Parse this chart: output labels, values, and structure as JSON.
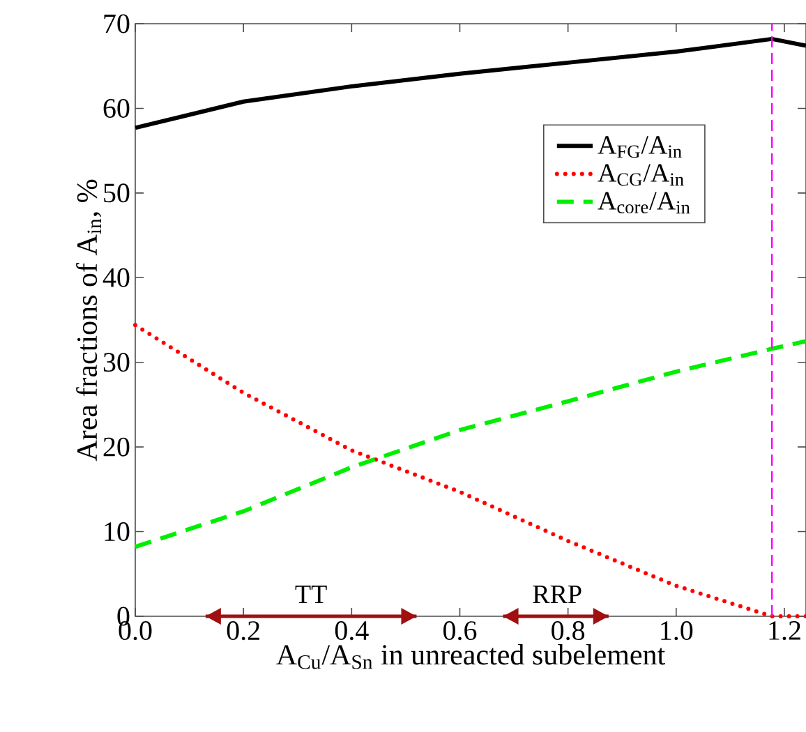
{
  "chart_data": {
    "type": "line",
    "xlabel": "A$_{Cu}$/A$_{Sn}$ in unreacted subelement",
    "ylabel": "Area fractions of A$_{in}$, %",
    "x": [
      0,
      0.2,
      0.4,
      0.6,
      0.8,
      1.0,
      1.177,
      1.24
    ],
    "series": [
      {
        "name": "A$_{FG}$/A$_{in}$",
        "color": "#000000",
        "line_style": "solid",
        "values": [
          57.7,
          60.8,
          62.6,
          64.1,
          65.4,
          66.7,
          68.2,
          67.4
        ]
      },
      {
        "name": "A$_{CG}$/A$_{in}$",
        "color": "#ff0000",
        "line_style": "dotted",
        "values": [
          34.4,
          26.4,
          19.6,
          14.7,
          8.9,
          3.6,
          0,
          0
        ]
      },
      {
        "name": "A$_{core}$/A$_{in}$",
        "color": "#00ee00",
        "line_style": "dashed",
        "values": [
          8.2,
          12.4,
          17.6,
          22.0,
          25.4,
          28.9,
          31.6,
          32.5
        ]
      },
      {
        "color": "#a01010",
        "line_style": "solid",
        "x": [
          0.13,
          0.52
        ],
        "values": [
          0,
          0
        ]
      },
      {
        "color": "#a01010",
        "line_style": "solid",
        "x": [
          0.68,
          0.875
        ],
        "values": [
          0,
          0
        ]
      }
    ],
    "annotations": [
      {
        "text": "TT",
        "x": 0.325,
        "y": 0
      },
      {
        "text": "RRP",
        "x": 0.78,
        "y": 0
      }
    ],
    "xlim": [
      0,
      1.24
    ],
    "ylim": [
      0,
      70
    ],
    "xticks": [
      {
        "value": 0,
        "label": "0.0"
      },
      0.2,
      0.4,
      0.6,
      0.8,
      {
        "value": 1.0,
        "label": "1.0"
      },
      1.2
    ],
    "yticks": [
      0,
      10,
      20,
      30,
      40,
      50,
      60,
      70
    ],
    "ref_lines": [
      {
        "axis": "x",
        "value": 1.177,
        "color": "#ff00ff",
        "line_style": "dashed"
      }
    ],
    "legend": "top right"
  }
}
